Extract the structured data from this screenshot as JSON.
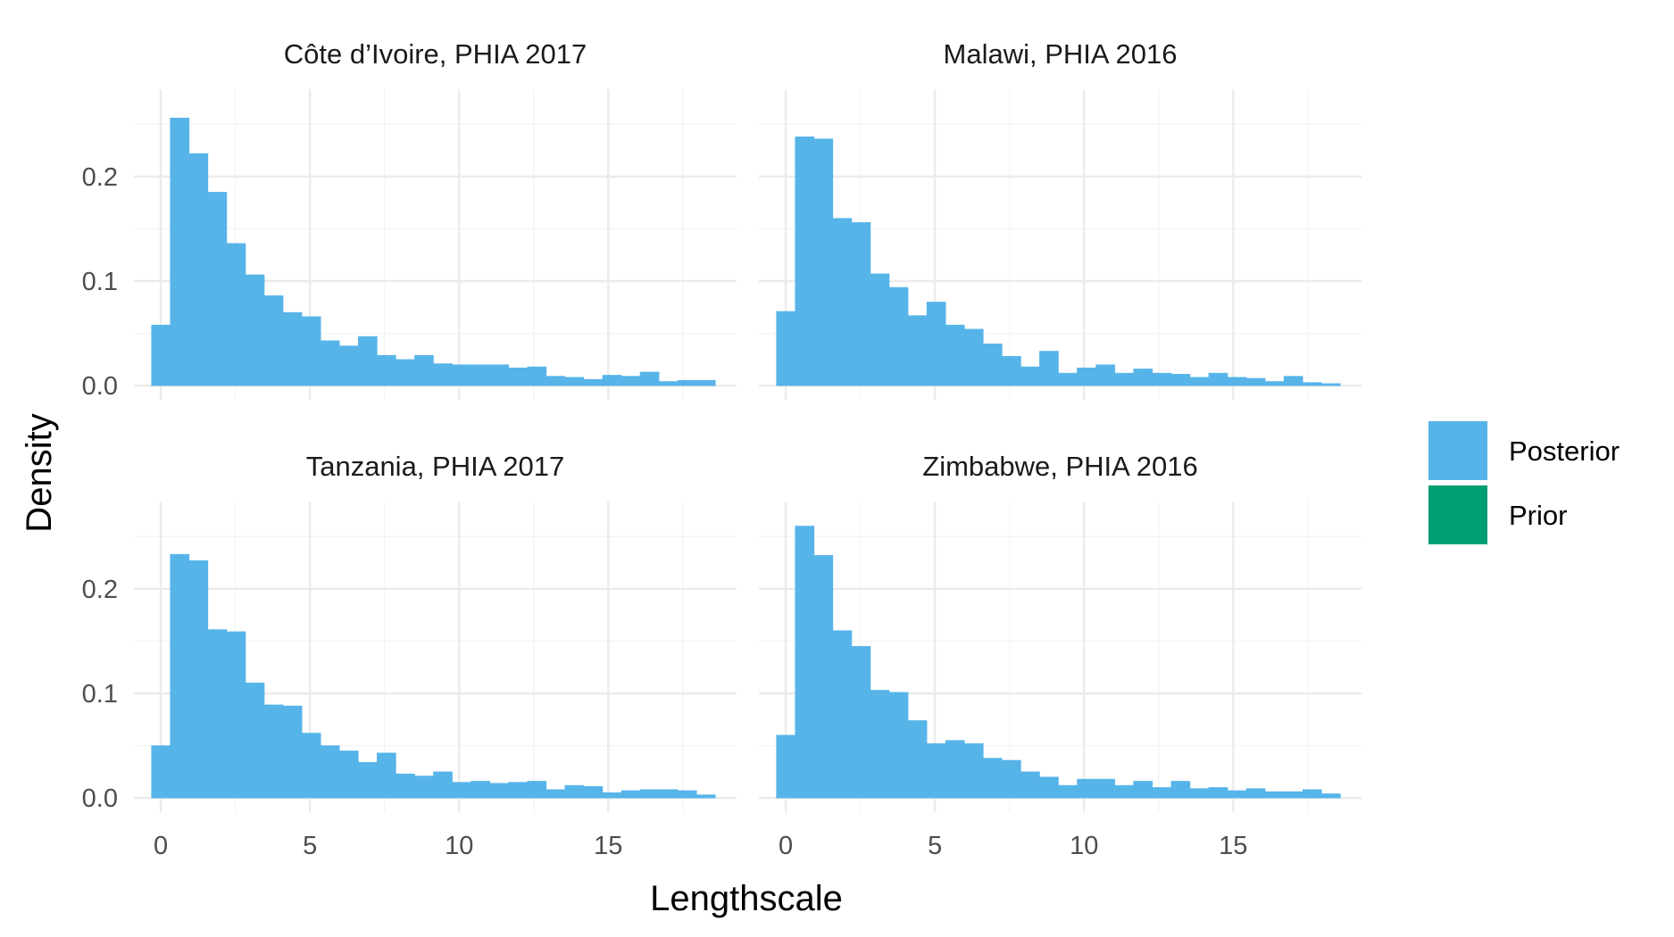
{
  "chart_data": {
    "type": "bar",
    "xlabel": "Lengthscale",
    "ylabel": "Density",
    "xlim": [
      -0.9,
      19.3
    ],
    "ylim": [
      -0.0135,
      0.2835
    ],
    "x_ticks": [
      0,
      5,
      10,
      15
    ],
    "x_tick_labels": [
      "0",
      "5",
      "10",
      "15"
    ],
    "y_ticks": [
      0.0,
      0.1,
      0.2
    ],
    "y_tick_labels": [
      "0.0",
      "0.1",
      "0.2"
    ],
    "grid": true,
    "legend": {
      "placement": "right",
      "entries": [
        {
          "name": "Posterior",
          "color": "#56B4E9"
        },
        {
          "name": "Prior",
          "color": "#009E73"
        }
      ]
    },
    "bin_start": -0.31,
    "bin_width": 0.63,
    "panels": [
      {
        "title": "Côte d’Ivoire, PHIA 2017",
        "series": [
          {
            "name": "Posterior",
            "values": [
              0.058,
              0.256,
              0.222,
              0.185,
              0.136,
              0.106,
              0.086,
              0.07,
              0.066,
              0.043,
              0.038,
              0.047,
              0.029,
              0.025,
              0.029,
              0.021,
              0.02,
              0.02,
              0.02,
              0.017,
              0.018,
              0.009,
              0.008,
              0.006,
              0.01,
              0.009,
              0.013,
              0.004,
              0.005,
              0.005
            ]
          },
          {
            "name": "Prior",
            "values": []
          }
        ]
      },
      {
        "title": "Malawi, PHIA 2016",
        "series": [
          {
            "name": "Posterior",
            "values": [
              0.071,
              0.238,
              0.236,
              0.16,
              0.156,
              0.107,
              0.094,
              0.067,
              0.08,
              0.058,
              0.054,
              0.04,
              0.028,
              0.018,
              0.033,
              0.012,
              0.017,
              0.02,
              0.012,
              0.016,
              0.012,
              0.011,
              0.008,
              0.012,
              0.008,
              0.007,
              0.004,
              0.009,
              0.003,
              0.002
            ]
          },
          {
            "name": "Prior",
            "values": []
          }
        ]
      },
      {
        "title": "Tanzania, PHIA 2017",
        "series": [
          {
            "name": "Posterior",
            "values": [
              0.05,
              0.233,
              0.227,
              0.161,
              0.159,
              0.11,
              0.089,
              0.088,
              0.062,
              0.05,
              0.045,
              0.034,
              0.043,
              0.023,
              0.021,
              0.025,
              0.015,
              0.016,
              0.014,
              0.015,
              0.016,
              0.008,
              0.012,
              0.011,
              0.005,
              0.007,
              0.008,
              0.008,
              0.007,
              0.003
            ]
          },
          {
            "name": "Prior",
            "values": []
          }
        ]
      },
      {
        "title": "Zimbabwe, PHIA 2016",
        "series": [
          {
            "name": "Posterior",
            "values": [
              0.06,
              0.26,
              0.232,
              0.16,
              0.145,
              0.103,
              0.101,
              0.074,
              0.052,
              0.055,
              0.052,
              0.038,
              0.036,
              0.025,
              0.02,
              0.012,
              0.018,
              0.018,
              0.012,
              0.016,
              0.01,
              0.016,
              0.009,
              0.01,
              0.007,
              0.009,
              0.006,
              0.006,
              0.008,
              0.004
            ]
          },
          {
            "name": "Prior",
            "values": []
          }
        ]
      }
    ]
  }
}
